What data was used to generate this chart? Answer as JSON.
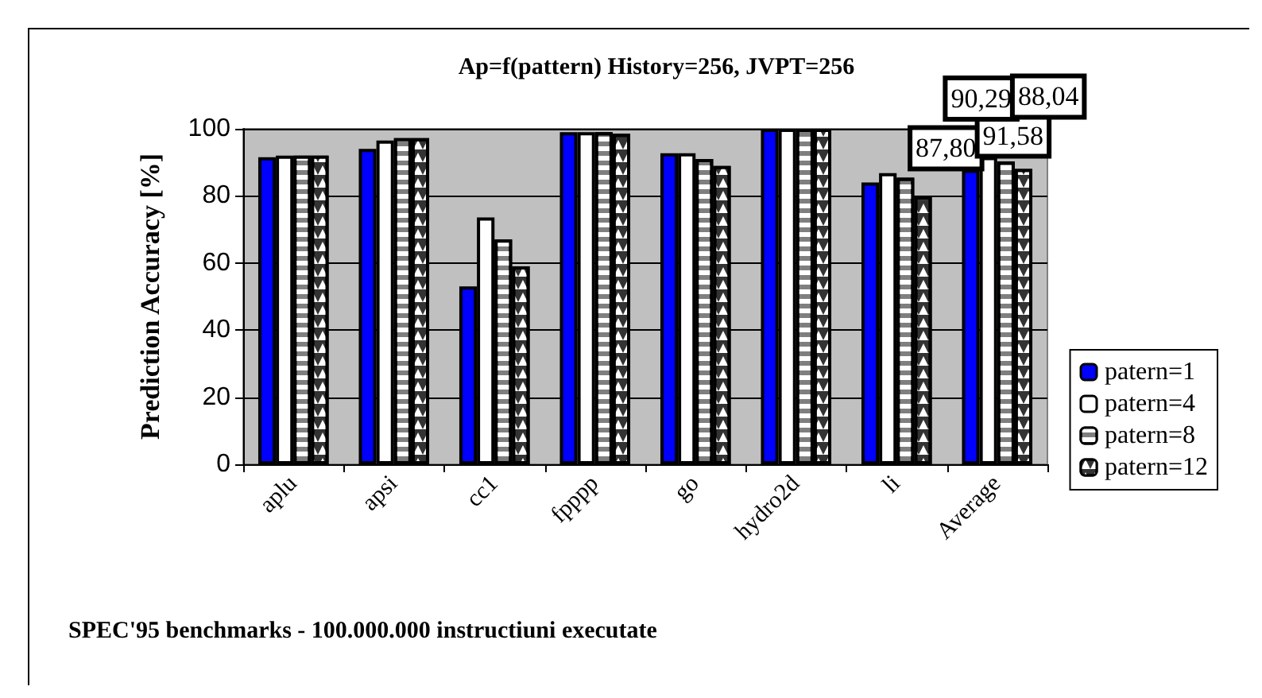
{
  "chart_data": {
    "type": "bar",
    "title": "Ap=f(pattern) History=256, JVPT=256",
    "xlabel": "SPEC'95 benchmarks - 100.000.000 instructiuni executate",
    "ylabel": "Prediction Accuracy [%]",
    "categories": [
      "aplu",
      "apsi",
      "cc1",
      "fpppp",
      "go",
      "hydro2d",
      "li",
      "Average"
    ],
    "series": [
      {
        "name": "patern=1",
        "color": "#0000ff",
        "values": [
          91.5,
          94,
          53,
          99,
          92.7,
          100,
          84,
          87.8
        ],
        "value_labels": [
          null,
          null,
          null,
          null,
          null,
          null,
          null,
          "87,80"
        ]
      },
      {
        "name": "patern=4",
        "color": "#ffffff",
        "values": [
          92,
          96.5,
          73.6,
          99,
          92.7,
          100,
          86.8,
          91.58
        ],
        "value_labels": [
          null,
          null,
          null,
          null,
          null,
          null,
          null,
          "91,58"
        ]
      },
      {
        "name": "patern=8",
        "color": "#7f7f7f",
        "values": [
          92,
          97.2,
          67,
          99,
          91,
          100,
          85.4,
          90.29
        ],
        "value_labels": [
          null,
          null,
          null,
          null,
          null,
          null,
          null,
          "90,29"
        ]
      },
      {
        "name": "patern=12",
        "color": "#333333",
        "values": [
          92,
          97.2,
          59,
          98.5,
          88.9,
          100,
          79.7,
          88.04
        ],
        "value_labels": [
          null,
          null,
          null,
          null,
          null,
          null,
          null,
          "88,04"
        ]
      }
    ],
    "ylim": [
      0,
      100
    ],
    "yticks": [
      0,
      20,
      40,
      60,
      80,
      100
    ],
    "grid": "y",
    "legend": "right"
  }
}
